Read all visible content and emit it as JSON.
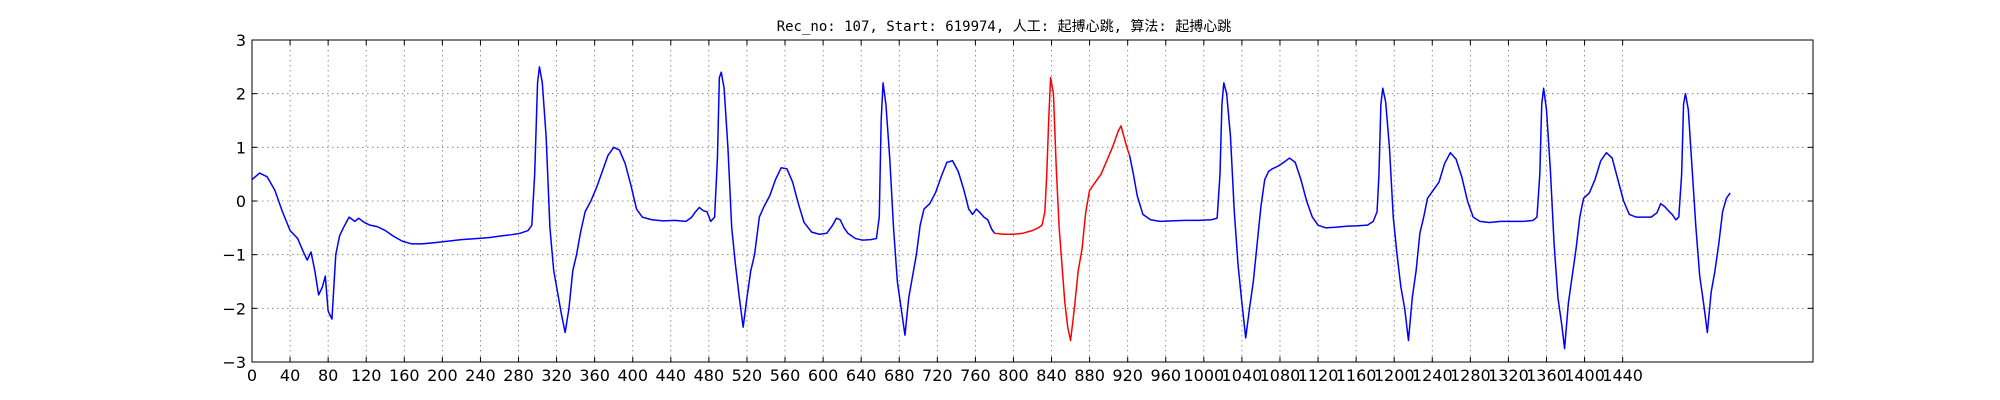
{
  "chart_data": {
    "type": "line",
    "title": "Rec_no: 107, Start: 619974, 人工: 起搏心跳, 算法: 起搏心跳",
    "xlabel": "",
    "ylabel": "",
    "xlim": [
      0,
      1640
    ],
    "ylim": [
      -3,
      3
    ],
    "grid": true,
    "y_ticks": [
      -3,
      -2,
      -1,
      0,
      1,
      2,
      3
    ],
    "y_tick_labels": [
      "−3",
      "−2",
      "−1",
      "0",
      "1",
      "2",
      "3"
    ],
    "x_ticks": [
      0,
      40,
      80,
      120,
      160,
      200,
      240,
      280,
      320,
      360,
      400,
      440,
      480,
      520,
      560,
      600,
      640,
      680,
      720,
      760,
      800,
      840,
      880,
      920,
      960,
      1000,
      1040,
      1080,
      1120,
      1160,
      1200,
      1240,
      1280,
      1320,
      1360,
      1400,
      1440
    ],
    "x_tick_labels": [
      "0",
      "40",
      "80",
      "120",
      "160",
      "200",
      "240",
      "280",
      "320",
      "360",
      "400",
      "440",
      "480",
      "520",
      "560",
      "600",
      "640",
      "680",
      "720",
      "760",
      "800",
      "840",
      "880",
      "920",
      "960",
      "1000",
      "1040",
      "1080",
      "1120",
      "1160",
      "1200",
      "1240",
      "1280",
      "1320",
      "1360",
      "1400",
      "1440"
    ],
    "series": [
      {
        "color": "#0000ff",
        "points": [
          [
            0,
            0.4
          ],
          [
            8,
            0.52
          ],
          [
            16,
            0.45
          ],
          [
            24,
            0.2
          ],
          [
            32,
            -0.2
          ],
          [
            40,
            -0.55
          ],
          [
            48,
            -0.7
          ],
          [
            54,
            -0.95
          ],
          [
            58,
            -1.1
          ],
          [
            62,
            -0.95
          ],
          [
            66,
            -1.3
          ],
          [
            70,
            -1.75
          ],
          [
            74,
            -1.6
          ],
          [
            77,
            -1.4
          ],
          [
            80,
            -2.05
          ],
          [
            84,
            -2.2
          ],
          [
            88,
            -1.0
          ],
          [
            92,
            -0.65
          ],
          [
            96,
            -0.5
          ],
          [
            102,
            -0.3
          ],
          [
            108,
            -0.38
          ],
          [
            112,
            -0.32
          ],
          [
            118,
            -0.4
          ],
          [
            124,
            -0.45
          ],
          [
            132,
            -0.48
          ],
          [
            140,
            -0.55
          ],
          [
            148,
            -0.65
          ],
          [
            158,
            -0.75
          ],
          [
            168,
            -0.8
          ],
          [
            178,
            -0.8
          ],
          [
            190,
            -0.78
          ],
          [
            205,
            -0.75
          ],
          [
            220,
            -0.72
          ],
          [
            235,
            -0.7
          ],
          [
            250,
            -0.68
          ],
          [
            262,
            -0.65
          ],
          [
            272,
            -0.63
          ],
          [
            282,
            -0.6
          ],
          [
            290,
            -0.55
          ],
          [
            294,
            -0.45
          ],
          [
            297,
            0.5
          ],
          [
            300,
            2.2
          ],
          [
            302,
            2.5
          ],
          [
            305,
            2.2
          ],
          [
            309,
            1.2
          ],
          [
            313,
            -0.5
          ],
          [
            317,
            -1.3
          ],
          [
            321,
            -1.7
          ],
          [
            325,
            -2.1
          ],
          [
            329,
            -2.45
          ],
          [
            333,
            -2.0
          ],
          [
            337,
            -1.3
          ],
          [
            341,
            -1.0
          ],
          [
            345,
            -0.6
          ],
          [
            350,
            -0.2
          ],
          [
            356,
            0.0
          ],
          [
            362,
            0.25
          ],
          [
            368,
            0.55
          ],
          [
            374,
            0.85
          ],
          [
            380,
            1.0
          ],
          [
            386,
            0.95
          ],
          [
            392,
            0.7
          ],
          [
            398,
            0.3
          ],
          [
            404,
            -0.15
          ],
          [
            410,
            -0.3
          ],
          [
            420,
            -0.35
          ],
          [
            432,
            -0.37
          ],
          [
            444,
            -0.36
          ],
          [
            456,
            -0.38
          ],
          [
            462,
            -0.3
          ],
          [
            466,
            -0.2
          ],
          [
            470,
            -0.12
          ],
          [
            474,
            -0.18
          ],
          [
            478,
            -0.2
          ],
          [
            482,
            -0.38
          ],
          [
            486,
            -0.3
          ],
          [
            489,
            0.8
          ],
          [
            491,
            2.3
          ],
          [
            493,
            2.4
          ],
          [
            496,
            2.1
          ],
          [
            500,
            1.0
          ],
          [
            504,
            -0.5
          ],
          [
            508,
            -1.2
          ],
          [
            512,
            -1.8
          ],
          [
            516,
            -2.35
          ],
          [
            520,
            -1.8
          ],
          [
            524,
            -1.3
          ],
          [
            528,
            -1.0
          ],
          [
            533,
            -0.3
          ],
          [
            538,
            -0.1
          ],
          [
            544,
            0.1
          ],
          [
            550,
            0.4
          ],
          [
            556,
            0.62
          ],
          [
            562,
            0.6
          ],
          [
            568,
            0.35
          ],
          [
            574,
            -0.05
          ],
          [
            580,
            -0.4
          ],
          [
            588,
            -0.58
          ],
          [
            596,
            -0.62
          ],
          [
            604,
            -0.6
          ],
          [
            610,
            -0.45
          ],
          [
            614,
            -0.32
          ],
          [
            618,
            -0.35
          ],
          [
            622,
            -0.5
          ],
          [
            626,
            -0.6
          ],
          [
            634,
            -0.7
          ],
          [
            642,
            -0.73
          ],
          [
            650,
            -0.72
          ],
          [
            656,
            -0.7
          ],
          [
            659,
            -0.3
          ],
          [
            661,
            1.5
          ],
          [
            663,
            2.2
          ],
          [
            666,
            1.8
          ],
          [
            670,
            0.8
          ],
          [
            674,
            -0.5
          ],
          [
            678,
            -1.5
          ],
          [
            682,
            -2.0
          ],
          [
            686,
            -2.5
          ],
          [
            690,
            -1.8
          ],
          [
            694,
            -1.4
          ],
          [
            698,
            -1.0
          ],
          [
            702,
            -0.45
          ],
          [
            706,
            -0.15
          ],
          [
            712,
            -0.05
          ],
          [
            718,
            0.15
          ],
          [
            724,
            0.45
          ],
          [
            730,
            0.72
          ],
          [
            736,
            0.75
          ],
          [
            742,
            0.55
          ],
          [
            748,
            0.2
          ],
          [
            753,
            -0.15
          ],
          [
            757,
            -0.25
          ],
          [
            761,
            -0.15
          ],
          [
            765,
            -0.22
          ],
          [
            769,
            -0.3
          ],
          [
            773,
            -0.35
          ],
          [
            777,
            -0.52
          ],
          [
            780,
            -0.6
          ]
        ]
      },
      {
        "color": "#ff0000",
        "points": [
          [
            780,
            -0.6
          ],
          [
            790,
            -0.62
          ],
          [
            800,
            -0.62
          ],
          [
            810,
            -0.6
          ],
          [
            820,
            -0.55
          ],
          [
            826,
            -0.5
          ],
          [
            830,
            -0.45
          ],
          [
            833,
            -0.2
          ],
          [
            835,
            0.5
          ],
          [
            837,
            1.5
          ],
          [
            839,
            2.3
          ],
          [
            842,
            2.0
          ],
          [
            845,
            0.6
          ],
          [
            848,
            -0.5
          ],
          [
            851,
            -1.2
          ],
          [
            854,
            -1.9
          ],
          [
            857,
            -2.35
          ],
          [
            860,
            -2.6
          ],
          [
            864,
            -2.0
          ],
          [
            868,
            -1.3
          ],
          [
            872,
            -0.9
          ],
          [
            876,
            -0.2
          ],
          [
            880,
            0.2
          ],
          [
            886,
            0.35
          ],
          [
            892,
            0.5
          ],
          [
            898,
            0.75
          ],
          [
            904,
            1.0
          ],
          [
            910,
            1.3
          ],
          [
            913,
            1.4
          ],
          [
            916,
            1.2
          ],
          [
            920,
            0.95
          ],
          [
            922,
            0.85
          ]
        ]
      },
      {
        "color": "#0000ff",
        "points": [
          [
            922,
            0.85
          ],
          [
            926,
            0.5
          ],
          [
            930,
            0.1
          ],
          [
            936,
            -0.25
          ],
          [
            944,
            -0.35
          ],
          [
            954,
            -0.38
          ],
          [
            966,
            -0.37
          ],
          [
            980,
            -0.36
          ],
          [
            994,
            -0.36
          ],
          [
            1008,
            -0.35
          ],
          [
            1014,
            -0.32
          ],
          [
            1017,
            0.5
          ],
          [
            1019,
            1.8
          ],
          [
            1021,
            2.2
          ],
          [
            1024,
            2.0
          ],
          [
            1028,
            1.2
          ],
          [
            1032,
            -0.2
          ],
          [
            1036,
            -1.2
          ],
          [
            1040,
            -1.9
          ],
          [
            1044,
            -2.55
          ],
          [
            1048,
            -2.0
          ],
          [
            1052,
            -1.5
          ],
          [
            1056,
            -0.8
          ],
          [
            1060,
            -0.1
          ],
          [
            1064,
            0.4
          ],
          [
            1068,
            0.55
          ],
          [
            1072,
            0.6
          ],
          [
            1078,
            0.65
          ],
          [
            1084,
            0.72
          ],
          [
            1090,
            0.8
          ],
          [
            1096,
            0.72
          ],
          [
            1102,
            0.4
          ],
          [
            1108,
            0.0
          ],
          [
            1114,
            -0.3
          ],
          [
            1120,
            -0.45
          ],
          [
            1128,
            -0.5
          ],
          [
            1138,
            -0.49
          ],
          [
            1150,
            -0.47
          ],
          [
            1162,
            -0.46
          ],
          [
            1172,
            -0.45
          ],
          [
            1178,
            -0.38
          ],
          [
            1182,
            -0.2
          ],
          [
            1184,
            0.5
          ],
          [
            1186,
            1.8
          ],
          [
            1188,
            2.1
          ],
          [
            1191,
            1.85
          ],
          [
            1195,
            1.0
          ],
          [
            1199,
            -0.3
          ],
          [
            1203,
            -1.0
          ],
          [
            1207,
            -1.6
          ],
          [
            1211,
            -2.0
          ],
          [
            1215,
            -2.6
          ],
          [
            1219,
            -1.8
          ],
          [
            1223,
            -1.3
          ],
          [
            1227,
            -0.6
          ],
          [
            1231,
            -0.3
          ],
          [
            1235,
            0.05
          ],
          [
            1241,
            0.2
          ],
          [
            1247,
            0.35
          ],
          [
            1253,
            0.7
          ],
          [
            1259,
            0.9
          ],
          [
            1265,
            0.78
          ],
          [
            1271,
            0.45
          ],
          [
            1277,
            0.0
          ],
          [
            1283,
            -0.3
          ],
          [
            1290,
            -0.38
          ],
          [
            1300,
            -0.4
          ],
          [
            1312,
            -0.38
          ],
          [
            1324,
            -0.38
          ],
          [
            1336,
            -0.38
          ],
          [
            1346,
            -0.36
          ],
          [
            1350,
            -0.3
          ],
          [
            1353,
            0.5
          ],
          [
            1355,
            1.8
          ],
          [
            1357,
            2.1
          ],
          [
            1360,
            1.7
          ],
          [
            1364,
            0.6
          ],
          [
            1368,
            -0.8
          ],
          [
            1372,
            -1.8
          ],
          [
            1376,
            -2.3
          ],
          [
            1379,
            -2.75
          ],
          [
            1383,
            -1.9
          ],
          [
            1387,
            -1.4
          ],
          [
            1391,
            -0.9
          ],
          [
            1395,
            -0.3
          ],
          [
            1399,
            0.05
          ],
          [
            1405,
            0.15
          ],
          [
            1411,
            0.4
          ],
          [
            1417,
            0.75
          ],
          [
            1423,
            0.9
          ],
          [
            1429,
            0.8
          ],
          [
            1435,
            0.4
          ],
          [
            1441,
            0.0
          ],
          [
            1447,
            -0.25
          ],
          [
            1454,
            -0.3
          ],
          [
            1462,
            -0.3
          ],
          [
            1470,
            -0.3
          ],
          [
            1476,
            -0.22
          ],
          [
            1480,
            -0.05
          ],
          [
            1484,
            -0.1
          ],
          [
            1488,
            -0.18
          ],
          [
            1492,
            -0.25
          ],
          [
            1496,
            -0.35
          ],
          [
            1499,
            -0.3
          ],
          [
            1502,
            0.5
          ],
          [
            1504,
            1.8
          ],
          [
            1506,
            2.0
          ],
          [
            1509,
            1.7
          ],
          [
            1513,
            0.6
          ],
          [
            1517,
            -0.5
          ],
          [
            1521,
            -1.4
          ],
          [
            1525,
            -1.9
          ],
          [
            1529,
            -2.45
          ],
          [
            1533,
            -1.7
          ],
          [
            1537,
            -1.3
          ],
          [
            1541,
            -0.8
          ],
          [
            1545,
            -0.2
          ],
          [
            1549,
            0.05
          ],
          [
            1553,
            0.15
          ]
        ]
      }
    ]
  }
}
